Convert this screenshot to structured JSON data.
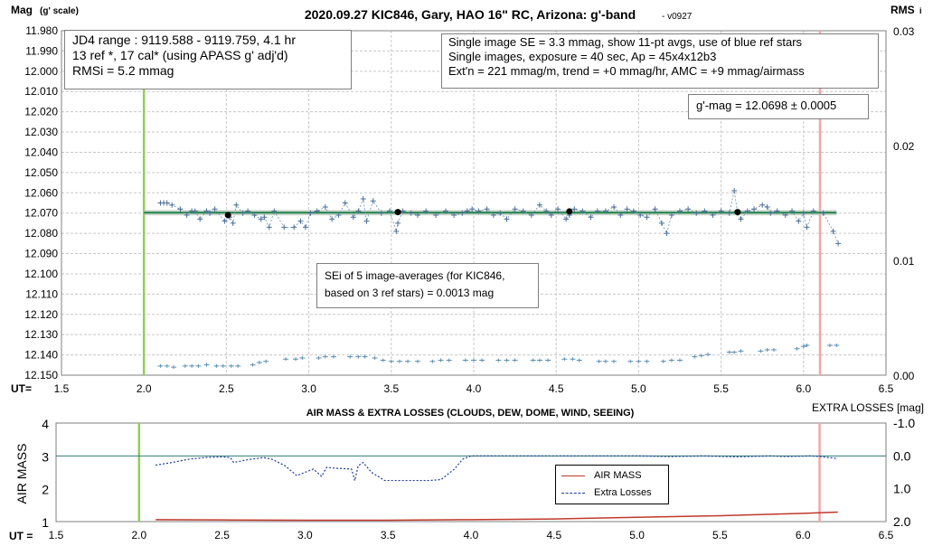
{
  "top": {
    "title": "2020.09.27 KIC846, Gary, HAO 16\" RC, Arizona: g'-band",
    "version": "- v0927",
    "y_label_main": "Mag",
    "y_label_sub": "(g' scale)",
    "right_axis_label": "RMS",
    "right_axis_suffix": "i",
    "x_label": "UT=",
    "info_left": [
      "JD4 range : 9119.588 - 9119.759,  4.1  hr",
      "13 ref *, 17 cal* (using APASS g' adj'd)",
      "RMSi = 5.2 mmag"
    ],
    "info_right": [
      "Single image SE = 3.3 mmag, show  11-pt avgs, use of blue ref stars",
      "Single images, exposure = 40 sec, Ap = 45x4x12b3",
      "Ext'n = 221 mmag/m, trend =  +0 mmag/hr, AMC = +9 mmag/airmass"
    ],
    "gmag_box": "g'-mag = 12.0698 ± 0.0005",
    "sei_box": [
      "SEi of 5 image-averages (for KIC846,",
      "based on 3 ref stars) = 0.0013 mag"
    ],
    "y_ticks": [
      "11.980",
      "11.990",
      "12.000",
      "12.010",
      "12.020",
      "12.030",
      "12.040",
      "12.050",
      "12.060",
      "12.070",
      "12.080",
      "12.090",
      "12.100",
      "12.110",
      "12.120",
      "12.130",
      "12.140",
      "12.150"
    ],
    "x_ticks": [
      "1.5",
      "2.0",
      "2.5",
      "3.0",
      "3.5",
      "4.0",
      "4.5",
      "5.0",
      "5.5",
      "6.0",
      "6.5"
    ],
    "right_ticks": [
      "0.03",
      "0.02",
      "0.01",
      "0.00"
    ]
  },
  "bottom": {
    "title": "AIR MASS & EXTRA LOSSES (CLOUDS, DEW, DOME, WIND, SEEING)",
    "right_axis_label": "EXTRA LOSSES [mag]",
    "y_label": "AIR MASS",
    "x_label": "UT =",
    "y_ticks": [
      "4",
      "3",
      "2",
      "1"
    ],
    "right_ticks": [
      "-1.0",
      "0.0",
      "1.0",
      "2.0"
    ],
    "x_ticks": [
      "1.5",
      "2.0",
      "2.5",
      "3.0",
      "3.5",
      "4.0",
      "4.5",
      "5.0",
      "5.5",
      "6.0",
      "6.5"
    ],
    "legend": [
      {
        "label": "AIR MASS",
        "color": "#c0392b",
        "dash": "solid"
      },
      {
        "label": "Extra Losses",
        "color": "#1f3c99",
        "dash": "dashed"
      }
    ]
  },
  "chart_data": [
    {
      "type": "scatter",
      "title": "2020.09.27 KIC846, Gary, HAO 16\" RC, Arizona: g'-band",
      "xlabel": "UT=",
      "ylabel": "Mag (g' scale)",
      "xlim": [
        1.5,
        6.5
      ],
      "ylim": [
        11.98,
        12.15
      ],
      "y_inverted": true,
      "y2label": "RMSi",
      "y2lim": [
        0.0,
        0.03
      ],
      "vertical_lines": [
        {
          "x": 2.0,
          "color": "#92d050"
        },
        {
          "x": 6.1,
          "color": "#f4a6a6"
        }
      ],
      "series": [
        {
          "name": "single images",
          "color": "#6f8fb0",
          "x": [
            2.1,
            2.12,
            2.14,
            2.17,
            2.22,
            2.26,
            2.29,
            2.31,
            2.34,
            2.38,
            2.4,
            2.43,
            2.49,
            2.52,
            2.54,
            2.56,
            2.6,
            2.63,
            2.67,
            2.71,
            2.73,
            2.76,
            2.79,
            2.85,
            2.91,
            2.95,
            2.98,
            3.01,
            3.05,
            3.1,
            3.14,
            3.18,
            3.22,
            3.27,
            3.3,
            3.33,
            3.35,
            3.39,
            3.44,
            3.49,
            3.53,
            3.54,
            3.57,
            3.62,
            3.66,
            3.71,
            3.77,
            3.83,
            3.88,
            3.93,
            3.96,
            3.99,
            4.03,
            4.08,
            4.12,
            4.16,
            4.2,
            4.25,
            4.3,
            4.35,
            4.4,
            4.44,
            4.47,
            4.51,
            4.56,
            4.58,
            4.61,
            4.66,
            4.71,
            4.75,
            4.8,
            4.85,
            4.89,
            4.93,
            4.97,
            5.01,
            5.05,
            5.1,
            5.14,
            5.17,
            5.2,
            5.25,
            5.3,
            5.35,
            5.4,
            5.45,
            5.5,
            5.55,
            5.58,
            5.6,
            5.62,
            5.66,
            5.7,
            5.75,
            5.78,
            5.8,
            5.84,
            5.89,
            5.93,
            5.97,
            6.0,
            6.02,
            6.06,
            6.12,
            6.18,
            6.21
          ],
          "y": [
            12.065,
            12.065,
            12.065,
            12.066,
            12.068,
            12.071,
            12.069,
            12.069,
            12.073,
            12.069,
            12.07,
            12.068,
            12.074,
            12.072,
            12.075,
            12.066,
            12.07,
            12.069,
            12.071,
            12.073,
            12.072,
            12.077,
            12.069,
            12.077,
            12.077,
            12.074,
            12.077,
            12.07,
            12.069,
            12.067,
            12.073,
            12.071,
            12.065,
            12.072,
            12.069,
            12.063,
            12.074,
            12.064,
            12.07,
            12.069,
            12.079,
            12.075,
            12.069,
            12.07,
            12.071,
            12.069,
            12.071,
            12.069,
            12.071,
            12.07,
            12.069,
            12.068,
            12.069,
            12.068,
            12.071,
            12.07,
            12.073,
            12.068,
            12.069,
            12.071,
            12.066,
            12.069,
            12.071,
            12.068,
            12.073,
            12.071,
            12.068,
            12.069,
            12.072,
            12.069,
            12.069,
            12.067,
            12.071,
            12.068,
            12.069,
            12.071,
            12.072,
            12.068,
            12.075,
            12.08,
            12.071,
            12.069,
            12.068,
            12.07,
            12.069,
            12.071,
            12.069,
            12.07,
            12.059,
            12.07,
            12.073,
            12.069,
            12.068,
            12.066,
            12.067,
            12.07,
            12.069,
            12.071,
            12.069,
            12.074,
            12.07,
            12.077,
            12.069,
            12.07,
            12.079,
            12.085
          ]
        },
        {
          "name": "5-image averages",
          "color": "#000000",
          "x": [
            2.51,
            3.54,
            4.58,
            5.6
          ],
          "y": [
            12.071,
            12.0695,
            12.0692,
            12.0695
          ]
        },
        {
          "name": "g'-mag average",
          "color": "#1e8449",
          "x": [
            2.0,
            6.2
          ],
          "y": [
            12.0698,
            12.0698
          ]
        },
        {
          "name": "RMSi",
          "axis": "y2",
          "color": "#5b8fb3",
          "x": [
            2.1,
            2.14,
            2.18,
            2.25,
            2.29,
            2.33,
            2.38,
            2.44,
            2.48,
            2.53,
            2.57,
            2.66,
            2.7,
            2.74,
            2.86,
            2.92,
            2.96,
            3.06,
            3.1,
            3.15,
            3.25,
            3.3,
            3.34,
            3.4,
            3.45,
            3.5,
            3.55,
            3.6,
            3.66,
            3.75,
            3.8,
            3.85,
            3.95,
            4.0,
            4.05,
            4.15,
            4.2,
            4.25,
            4.36,
            4.4,
            4.45,
            4.55,
            4.6,
            4.64,
            4.76,
            4.8,
            4.85,
            4.95,
            5.0,
            5.05,
            5.15,
            5.2,
            5.25,
            5.34,
            5.38,
            5.42,
            5.55,
            5.58,
            5.62,
            5.74,
            5.78,
            5.82,
            5.96,
            6.0,
            6.02,
            6.16,
            6.2
          ],
          "y": [
            0.0008,
            0.0008,
            0.0007,
            0.0008,
            0.0008,
            0.0008,
            0.0009,
            0.0008,
            0.0008,
            0.0008,
            0.0008,
            0.0009,
            0.0011,
            0.0012,
            0.0014,
            0.0014,
            0.0015,
            0.0015,
            0.0016,
            0.0016,
            0.0016,
            0.0016,
            0.0016,
            0.0015,
            0.0013,
            0.0012,
            0.0012,
            0.0012,
            0.0012,
            0.0012,
            0.0013,
            0.0013,
            0.0013,
            0.0013,
            0.0013,
            0.0013,
            0.0013,
            0.0013,
            0.0013,
            0.0013,
            0.0013,
            0.0014,
            0.0014,
            0.0013,
            0.0012,
            0.0012,
            0.0012,
            0.0012,
            0.0012,
            0.0012,
            0.0012,
            0.0013,
            0.0013,
            0.0016,
            0.0017,
            0.0018,
            0.002,
            0.002,
            0.0021,
            0.0021,
            0.0022,
            0.0022,
            0.0023,
            0.0025,
            0.0026,
            0.0026,
            0.0026
          ]
        }
      ]
    },
    {
      "type": "line",
      "title": "AIR MASS & EXTRA LOSSES (CLOUDS, DEW, DOME, WIND, SEEING)",
      "xlabel": "UT =",
      "ylabel": "AIR MASS",
      "xlim": [
        1.5,
        6.5
      ],
      "ylim": [
        1,
        4
      ],
      "y2label": "EXTRA LOSSES [mag]",
      "y2lim": [
        -1.0,
        2.0
      ],
      "y2_inverted": true,
      "vertical_lines": [
        {
          "x": 2.0,
          "color": "#92d050"
        },
        {
          "x": 6.1,
          "color": "#f4a6a6"
        }
      ],
      "reference_line": {
        "axis": "y",
        "value": 3.0,
        "color": "#2e7d7a"
      },
      "series": [
        {
          "name": "AIR MASS",
          "color": "#c0392b",
          "axis": "y",
          "x": [
            2.1,
            2.5,
            3.0,
            3.5,
            4.0,
            4.5,
            5.0,
            5.5,
            6.0,
            6.21
          ],
          "y": [
            1.06,
            1.05,
            1.04,
            1.04,
            1.06,
            1.08,
            1.13,
            1.18,
            1.25,
            1.29
          ]
        },
        {
          "name": "Extra Losses",
          "color": "#1f3c99",
          "axis": "y2",
          "x": [
            2.1,
            2.2,
            2.3,
            2.4,
            2.5,
            2.55,
            2.57,
            2.65,
            2.75,
            2.8,
            2.88,
            2.95,
            3.05,
            3.1,
            3.13,
            3.2,
            3.28,
            3.3,
            3.32,
            3.35,
            3.4,
            3.48,
            3.55,
            3.65,
            3.75,
            3.82,
            3.9,
            3.95,
            4.0,
            4.1,
            4.2,
            4.4,
            4.6,
            4.8,
            5.0,
            5.2,
            5.4,
            5.6,
            5.8,
            5.9,
            6.05,
            6.1,
            6.15,
            6.21
          ],
          "y": [
            0.28,
            0.2,
            0.1,
            0.05,
            0.03,
            0.05,
            0.2,
            0.12,
            0.05,
            0.1,
            0.3,
            0.6,
            0.4,
            0.62,
            0.35,
            0.38,
            0.4,
            0.75,
            0.3,
            0.2,
            0.5,
            0.75,
            0.75,
            0.75,
            0.75,
            0.72,
            0.4,
            0.1,
            0.0,
            0.0,
            0.0,
            0.0,
            0.0,
            0.0,
            0.0,
            0.02,
            0.0,
            0.03,
            0.0,
            0.02,
            0.0,
            0.02,
            0.05,
            0.08
          ]
        }
      ]
    }
  ]
}
